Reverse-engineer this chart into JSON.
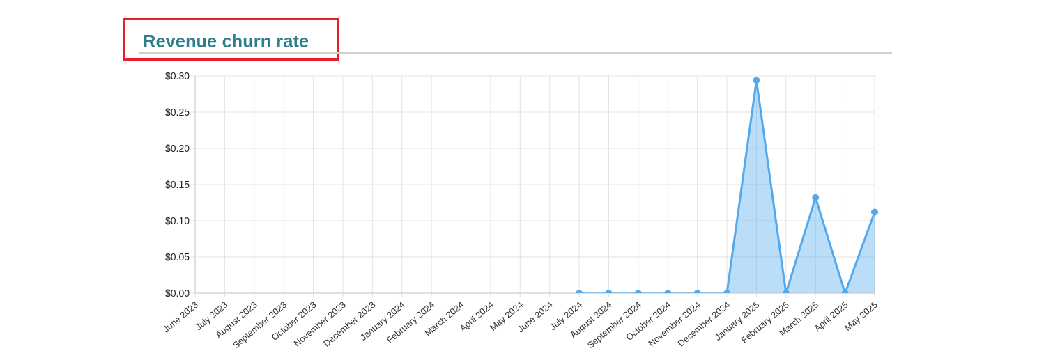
{
  "chart_data": {
    "type": "area",
    "title": "Revenue churn rate",
    "categories": [
      "June 2023",
      "July 2023",
      "August 2023",
      "September 2023",
      "October 2023",
      "November 2023",
      "December 2023",
      "January 2024",
      "February 2024",
      "March 2024",
      "April 2024",
      "May 2024",
      "June 2024",
      "July 2024",
      "August 2024",
      "September 2024",
      "October 2024",
      "November 2024",
      "December 2024",
      "January 2025",
      "February 2025",
      "March 2025",
      "April 2025",
      "May 2025"
    ],
    "values": [
      null,
      null,
      null,
      null,
      null,
      null,
      null,
      null,
      null,
      null,
      null,
      null,
      null,
      0,
      0,
      0,
      0,
      0,
      0,
      0.294,
      0,
      0.132,
      0,
      0.112
    ],
    "color": "#52a9ee",
    "ylim": [
      0,
      0.3
    ],
    "yticks": [
      {
        "value": 0,
        "label": "$0.00"
      },
      {
        "value": 0.05,
        "label": "$0.05"
      },
      {
        "value": 0.1,
        "label": "$0.10"
      },
      {
        "value": 0.15,
        "label": "$0.15"
      },
      {
        "value": 0.2,
        "label": "$0.20"
      },
      {
        "value": 0.25,
        "label": "$0.25"
      },
      {
        "value": 0.3,
        "label": "$0.30"
      }
    ],
    "grid": true,
    "marker": "circle",
    "line_style": "solid"
  }
}
